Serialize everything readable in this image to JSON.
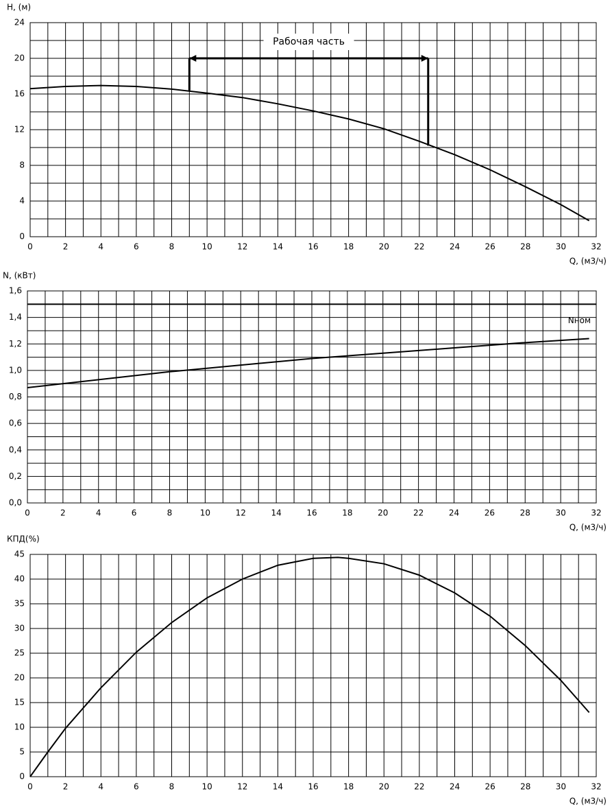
{
  "chart_data": [
    {
      "type": "line",
      "ylabel": "H, (м)",
      "xlabel": "Q, (м3/ч)",
      "x": [
        0,
        2,
        4,
        6,
        8,
        10,
        12,
        14,
        16,
        18,
        20,
        22,
        24,
        26,
        28,
        30,
        31.6
      ],
      "series": [
        {
          "color": "#000000",
          "values": [
            16.6,
            16.85,
            16.95,
            16.85,
            16.55,
            16.1,
            15.6,
            14.9,
            14.1,
            13.2,
            12.1,
            10.7,
            9.2,
            7.5,
            5.6,
            3.6,
            1.8
          ]
        }
      ],
      "xlim": [
        0,
        32
      ],
      "xticks": [
        0,
        2,
        4,
        6,
        8,
        10,
        12,
        14,
        16,
        18,
        20,
        22,
        24,
        26,
        28,
        30,
        32
      ],
      "ylim": [
        0,
        24
      ],
      "yticks": [
        0,
        4,
        8,
        12,
        16,
        20,
        24
      ],
      "grid": true,
      "minor_grid_x": true,
      "minor_grid_y": true,
      "annotation": {
        "text": "Рабочая часть",
        "x": [
          9,
          22.5
        ],
        "y": 20,
        "y_ends": [
          16.4,
          10.2
        ]
      }
    },
    {
      "type": "line",
      "ylabel": "N, (кВт)",
      "xlabel": "Q, (м3/ч)",
      "x": [
        0,
        4,
        8,
        12,
        16,
        20,
        24,
        28,
        31.6
      ],
      "series": [
        {
          "color": "#000000",
          "values": [
            0.87,
            0.93,
            0.99,
            1.04,
            1.09,
            1.13,
            1.17,
            1.21,
            1.24
          ]
        }
      ],
      "xlim": [
        0,
        32
      ],
      "xticks": [
        0,
        2,
        4,
        6,
        8,
        10,
        12,
        14,
        16,
        18,
        20,
        22,
        24,
        26,
        28,
        30,
        32
      ],
      "ylim": [
        0,
        1.6
      ],
      "yticks": [
        {
          "value": 0,
          "label": "0,0"
        },
        {
          "value": 0.2,
          "label": "0,2"
        },
        {
          "value": 0.4,
          "label": "0,4"
        },
        {
          "value": 0.6,
          "label": "0,6"
        },
        {
          "value": 0.8,
          "label": "0,8"
        },
        {
          "value": 1.0,
          "label": "1,0"
        },
        {
          "value": 1.2,
          "label": "1,2"
        },
        {
          "value": 1.4,
          "label": "1,4"
        },
        {
          "value": 1.6,
          "label": "1,6"
        }
      ],
      "grid": true,
      "minor_grid_x": true,
      "minor_grid_y": true,
      "reference_lines": [
        {
          "value": 1.5,
          "label": "Nном"
        }
      ]
    },
    {
      "type": "line",
      "ylabel": "КПД(%)",
      "xlabel": "Q, (м3/ч)",
      "x": [
        0,
        1,
        2,
        4,
        6,
        8,
        10,
        12,
        14,
        16,
        17.4,
        18,
        20,
        22,
        24,
        26,
        28,
        30,
        31.6
      ],
      "series": [
        {
          "color": "#000000",
          "values": [
            0,
            5,
            9.8,
            18,
            25.2,
            31.2,
            36.2,
            40,
            42.8,
            44.2,
            44.4,
            44.2,
            43.1,
            40.8,
            37.2,
            32.5,
            26.5,
            19.5,
            13
          ]
        }
      ],
      "xlim": [
        0,
        32
      ],
      "xticks": [
        0,
        2,
        4,
        6,
        8,
        10,
        12,
        14,
        16,
        18,
        20,
        22,
        24,
        26,
        28,
        30,
        32
      ],
      "ylim": [
        0,
        45
      ],
      "yticks": [
        0,
        5,
        10,
        15,
        20,
        25,
        30,
        35,
        40,
        45
      ],
      "grid": true,
      "minor_grid_x": true,
      "minor_grid_y": false
    }
  ]
}
